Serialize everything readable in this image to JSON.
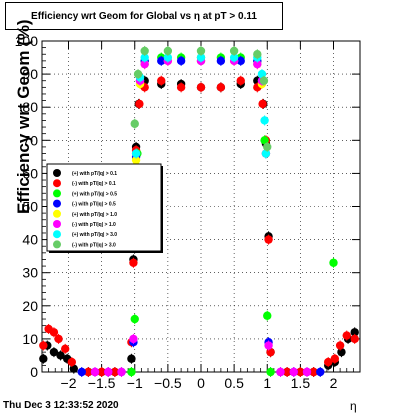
{
  "header": {
    "title": "Efficiency wrt Geom for Global vs   η at pT > 0.11"
  },
  "footer": {
    "timestamp": "Thu Dec  3 12:33:52 2020"
  },
  "chart_data": {
    "type": "scatter",
    "title": "Efficiency wrt Geom for Global vs   η at pT > 0.11",
    "xlabel": "η",
    "ylabel": "Efficiency wrt Geom (%)",
    "xlim": [
      -2.4,
      2.4
    ],
    "ylim": [
      0,
      100
    ],
    "x_ticks": [
      -2,
      -1.5,
      -1,
      -0.5,
      0,
      0.5,
      1,
      1.5,
      2
    ],
    "x_tick_labels": [
      "−2",
      "−1.5",
      "−1",
      "−0.5",
      "0",
      "0.5",
      "1",
      "1.5",
      "2"
    ],
    "y_ticks": [
      0,
      10,
      20,
      30,
      40,
      50,
      60,
      70,
      80,
      90,
      100
    ],
    "y_tick_labels": [
      "0",
      "10",
      "20",
      "30",
      "40",
      "50",
      "60",
      "70",
      "80",
      "90",
      "100"
    ],
    "grid": true,
    "legend_position": "left",
    "series": [
      {
        "name": "(+) with pT/|q| > 0.1",
        "color": "#000000",
        "points": [
          [
            -2.38,
            4
          ],
          [
            -2.32,
            8
          ],
          [
            -2.22,
            6
          ],
          [
            -2.12,
            5
          ],
          [
            -2.02,
            4
          ],
          [
            -1.92,
            1
          ],
          [
            -1.7,
            0
          ],
          [
            -1.5,
            0
          ],
          [
            -1.3,
            0
          ],
          [
            -1.05,
            4
          ],
          [
            -1.02,
            34
          ],
          [
            -0.98,
            68
          ],
          [
            -0.94,
            81
          ],
          [
            -0.85,
            88
          ],
          [
            -0.6,
            87
          ],
          [
            -0.3,
            87
          ],
          [
            0,
            86
          ],
          [
            0.3,
            86
          ],
          [
            0.6,
            87
          ],
          [
            0.85,
            88
          ],
          [
            0.94,
            81
          ],
          [
            0.98,
            69
          ],
          [
            1.02,
            41
          ],
          [
            1.05,
            6
          ],
          [
            1.3,
            0
          ],
          [
            1.5,
            0
          ],
          [
            1.7,
            0
          ],
          [
            1.92,
            2
          ],
          [
            2.02,
            3
          ],
          [
            2.12,
            6
          ],
          [
            2.22,
            10
          ],
          [
            2.32,
            12
          ]
        ]
      },
      {
        "name": "(-) with pT/|q| > 0.1",
        "color": "#ff0000",
        "points": [
          [
            -2.38,
            8
          ],
          [
            -2.3,
            13
          ],
          [
            -2.22,
            12
          ],
          [
            -2.15,
            10
          ],
          [
            -2.05,
            7
          ],
          [
            -1.95,
            3
          ],
          [
            -1.7,
            0
          ],
          [
            -1.5,
            0
          ],
          [
            -1.3,
            0
          ],
          [
            -1.05,
            9
          ],
          [
            -1.02,
            33
          ],
          [
            -0.98,
            67
          ],
          [
            -0.93,
            81
          ],
          [
            -0.85,
            86
          ],
          [
            -0.6,
            88
          ],
          [
            -0.3,
            86
          ],
          [
            0,
            86
          ],
          [
            0.3,
            86
          ],
          [
            0.6,
            88
          ],
          [
            0.85,
            86
          ],
          [
            0.93,
            81
          ],
          [
            0.98,
            70
          ],
          [
            1.02,
            40
          ],
          [
            1.05,
            6
          ],
          [
            1.3,
            0
          ],
          [
            1.5,
            0
          ],
          [
            1.7,
            0
          ],
          [
            1.92,
            3
          ],
          [
            2.02,
            4
          ],
          [
            2.1,
            8
          ],
          [
            2.2,
            11
          ],
          [
            2.32,
            10
          ]
        ]
      },
      {
        "name": "(+) with pT/|q| > 0.5",
        "color": "#00ff00",
        "points": [
          [
            -1.05,
            0
          ],
          [
            -1.0,
            16
          ],
          [
            -0.96,
            66
          ],
          [
            -0.92,
            88
          ],
          [
            -0.85,
            94
          ],
          [
            -0.6,
            95
          ],
          [
            -0.3,
            95
          ],
          [
            0,
            95
          ],
          [
            0.3,
            95
          ],
          [
            0.6,
            95
          ],
          [
            0.85,
            94
          ],
          [
            0.92,
            88
          ],
          [
            0.96,
            70
          ],
          [
            1.0,
            17
          ],
          [
            1.05,
            0
          ],
          [
            2.0,
            33
          ]
        ]
      },
      {
        "name": "(-) with pT/|q| > 0.5",
        "color": "#0000ff",
        "points": [
          [
            -1.8,
            0
          ],
          [
            -1.6,
            0
          ],
          [
            -1.4,
            0
          ],
          [
            -1.2,
            0
          ],
          [
            -1.02,
            9
          ],
          [
            -0.98,
            65
          ],
          [
            -0.92,
            88
          ],
          [
            -0.85,
            94
          ],
          [
            -0.6,
            94
          ],
          [
            -0.3,
            94
          ],
          [
            0,
            94
          ],
          [
            0.3,
            94
          ],
          [
            0.6,
            94
          ],
          [
            0.85,
            94
          ],
          [
            0.92,
            88
          ],
          [
            0.98,
            66
          ],
          [
            1.02,
            9
          ],
          [
            1.2,
            0
          ],
          [
            1.4,
            0
          ],
          [
            1.6,
            0
          ],
          [
            1.8,
            0
          ]
        ]
      },
      {
        "name": "(+) with pT/|q| > 1.0",
        "color": "#ffff00",
        "points": [
          [
            -0.98,
            64
          ],
          [
            -0.92,
            87
          ],
          [
            -0.85,
            93
          ],
          [
            -0.5,
            94
          ],
          [
            0,
            94
          ],
          [
            0.5,
            94
          ],
          [
            0.85,
            93
          ],
          [
            0.92,
            87
          ],
          [
            0.98,
            66
          ]
        ]
      },
      {
        "name": "(-) with pT/|q| > 1.0",
        "color": "#ff00ff",
        "points": [
          [
            -1.6,
            0
          ],
          [
            -1.4,
            0
          ],
          [
            -1.2,
            0
          ],
          [
            -1.02,
            10
          ],
          [
            -0.98,
            66
          ],
          [
            -0.92,
            88
          ],
          [
            -0.85,
            93
          ],
          [
            -0.5,
            94
          ],
          [
            0,
            94
          ],
          [
            0.5,
            94
          ],
          [
            0.85,
            93
          ],
          [
            0.92,
            88
          ],
          [
            0.98,
            66
          ],
          [
            1.02,
            8
          ],
          [
            1.2,
            0
          ],
          [
            1.4,
            0
          ],
          [
            1.6,
            0
          ]
        ]
      },
      {
        "name": "(+) with pT/|q| > 3.0",
        "color": "#00ffff",
        "points": [
          [
            -0.98,
            66
          ],
          [
            -0.92,
            89
          ],
          [
            -0.85,
            95
          ],
          [
            -0.5,
            95
          ],
          [
            0,
            95
          ],
          [
            0.5,
            95
          ],
          [
            0.85,
            95
          ],
          [
            0.92,
            90
          ],
          [
            0.96,
            76
          ],
          [
            0.98,
            66
          ]
        ]
      },
      {
        "name": "(-) with pT/|q| > 3.0",
        "color": "#66cc66",
        "points": [
          [
            -1.0,
            75
          ],
          [
            -0.95,
            90
          ],
          [
            -0.85,
            97
          ],
          [
            -0.5,
            97
          ],
          [
            0,
            97
          ],
          [
            0.5,
            97
          ],
          [
            0.85,
            96
          ],
          [
            0.95,
            88
          ],
          [
            1.0,
            68
          ]
        ]
      }
    ]
  }
}
